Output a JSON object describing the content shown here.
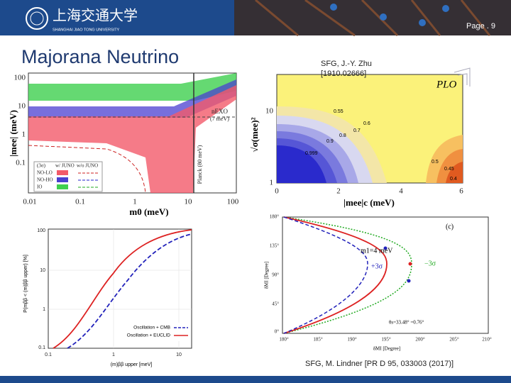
{
  "header": {
    "university": "上海交通大学",
    "university_en": "SHANGHAI JIAO TONG UNIVERSITY",
    "page": "Page . 9"
  },
  "title": "Majorana Neutrino",
  "figures": [
    {
      "y_label": "|mee| (meV)",
      "x_label": "m0 (meV)",
      "yticks": [
        "100",
        "10",
        "1",
        "0.1"
      ],
      "xticks": [
        "0.01",
        "0.1",
        "1",
        "10",
        "100"
      ],
      "annotations": [
        "nEXO",
        "(7 meV)",
        "Planck (80 meV)"
      ],
      "legend": {
        "header": [
          "(3σ)",
          "w/ JUNO",
          "w/o JUNO"
        ],
        "rows": [
          "NO-LO",
          "NO-HO",
          "IO"
        ]
      }
    },
    {
      "y_label": "P(mββ < (m)ββ upper) [%]",
      "x_label": "(m)ββ upper [meV]",
      "yticks": [
        "100",
        "10",
        "1",
        "0.1"
      ],
      "xticks": [
        "0.1",
        "1",
        "10"
      ],
      "legend": [
        "Oscillation + CMB",
        "Oscillation + EUCLID"
      ]
    },
    {
      "y_label": "√σ(mee)²",
      "x_label": "|mee|c (meV)",
      "yticks": [
        "10",
        "1"
      ],
      "xticks": [
        "0",
        "2",
        "4",
        "6"
      ],
      "panel_label": "PLO",
      "contours": [
        "0.55",
        "0.6",
        "0.7",
        "0.8",
        "0.9",
        "0.999",
        "0.5",
        "0.45",
        "0.4"
      ]
    },
    {
      "panel_label": "(c)",
      "annotations": [
        "m1=4 meV",
        "+3σ",
        "−3σ",
        "θs=33.48°  =0.76°"
      ],
      "y_label": "δMI [Degree]",
      "x_label": "δMI [Degree]",
      "yticks": [
        "180°",
        "135°",
        "90°",
        "45°",
        "0°"
      ],
      "xticks": [
        "180°",
        "185°",
        "190°",
        "195°",
        "200°",
        "205°",
        "210°"
      ]
    }
  ],
  "citations": [
    [
      "SFG, J.-Y. Zhu",
      "[1910.02666]"
    ],
    [
      "SFG, M. Lindner [PR D 95, 033003 (2017)]"
    ]
  ]
}
